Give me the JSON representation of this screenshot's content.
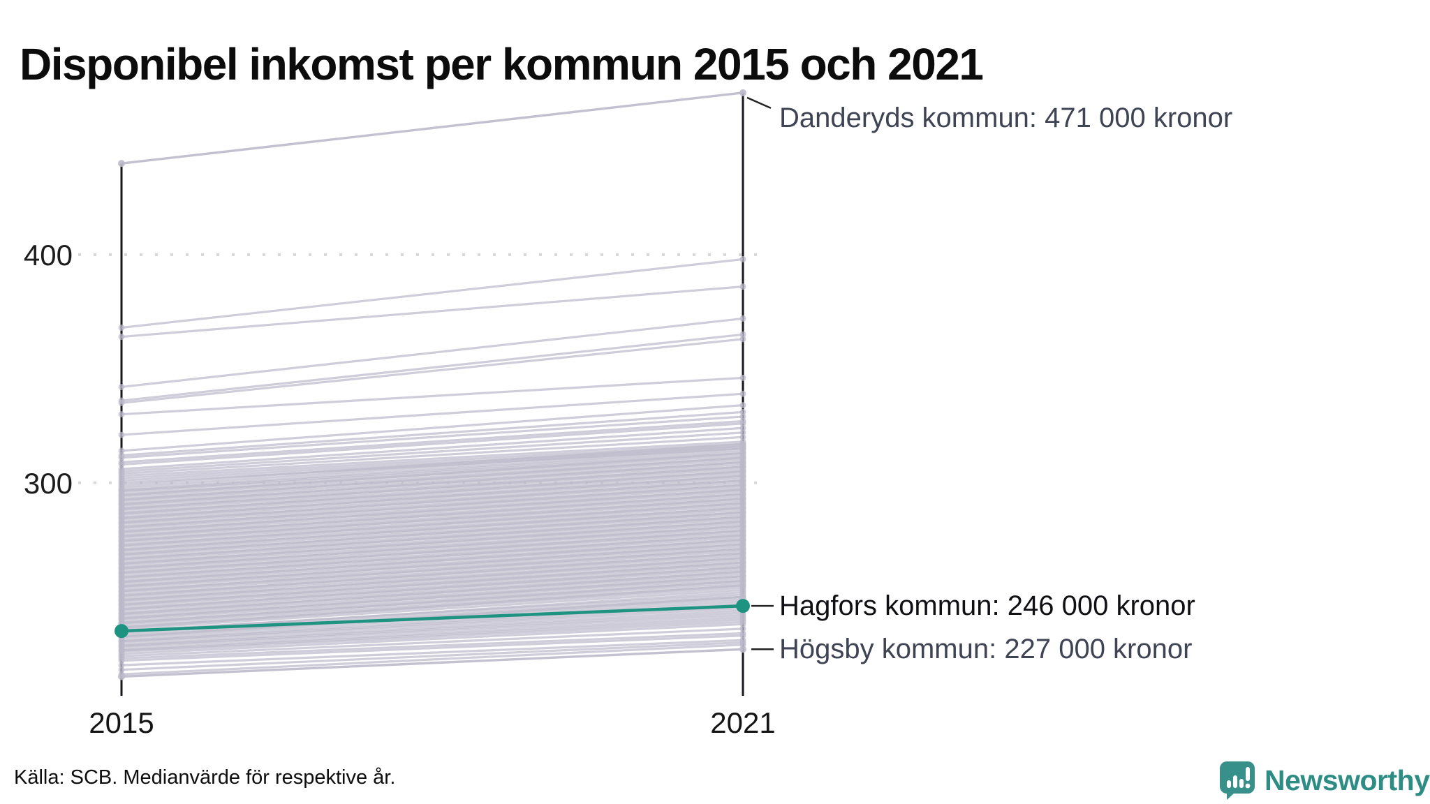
{
  "title": "Disponibel inkomst per kommun 2015 och 2021",
  "footer": {
    "source": "Källa: SCB. Medianvärde för respektive år."
  },
  "branding": {
    "name": "Newsworthy",
    "icon": "newsworthy-speech-bubble-chart-icon",
    "icon_color": "#37918a",
    "text_color": "#2d8d85"
  },
  "chart_data": {
    "type": "line",
    "subtype": "slopegraph",
    "title": "Disponibel inkomst per kommun 2015 och 2021",
    "x": [
      2015,
      2021
    ],
    "x_tick_labels": [
      "2015",
      "2021"
    ],
    "y_ticks": [
      400,
      300
    ],
    "y_tick_labels": [
      "400",
      "300"
    ],
    "ylim": [
      210,
      480
    ],
    "grid": "dotted-horizontal",
    "grid_color": "#d8d8da",
    "line_color": "#bdbacb",
    "highlight_color": "#1f9382",
    "axis_color": "#17171c",
    "annotated": [
      {
        "name": "Danderyds kommun",
        "values": [
          440,
          471
        ],
        "label": "Danderyds kommun: 471 000 kronor",
        "label_color": "#3f4454",
        "style": "background",
        "connector": "diagonal"
      },
      {
        "name": "Hagfors kommun",
        "values": [
          235,
          246
        ],
        "label": "Hagfors kommun: 246 000 kronor",
        "label_color": "#101014",
        "style": "highlight",
        "connector": "horizontal"
      },
      {
        "name": "Högsby kommun",
        "values": [
          215,
          227
        ],
        "label": "Högsby kommun: 227 000 kronor",
        "label_color": "#3f4454",
        "style": "background",
        "connector": "horizontal"
      }
    ],
    "background_series": [
      [
        368,
        398
      ],
      [
        364,
        386
      ],
      [
        342,
        372
      ],
      [
        336,
        365
      ],
      [
        335,
        363
      ],
      [
        330,
        346
      ],
      [
        321,
        339
      ],
      [
        314,
        334
      ],
      [
        312,
        331
      ],
      [
        311,
        329
      ],
      [
        309,
        327
      ],
      [
        308,
        326
      ],
      [
        306,
        324
      ],
      [
        305,
        322
      ],
      [
        304,
        320
      ],
      [
        303,
        318
      ],
      [
        302,
        317
      ],
      [
        301,
        316
      ],
      [
        300,
        315
      ],
      [
        299,
        317
      ],
      [
        298,
        316
      ],
      [
        297,
        315
      ],
      [
        296.5,
        314
      ],
      [
        296,
        313
      ],
      [
        295,
        312
      ],
      [
        294.5,
        313
      ],
      [
        294,
        311
      ],
      [
        293,
        310
      ],
      [
        292.5,
        311
      ],
      [
        292,
        309
      ],
      [
        291,
        308
      ],
      [
        290.5,
        309
      ],
      [
        290,
        307
      ],
      [
        289,
        306
      ],
      [
        288.5,
        307
      ],
      [
        288,
        305
      ],
      [
        287,
        304
      ],
      [
        286.5,
        305
      ],
      [
        286,
        303
      ],
      [
        285,
        302
      ],
      [
        284.5,
        303
      ],
      [
        284,
        301
      ],
      [
        283,
        300
      ],
      [
        282.5,
        301
      ],
      [
        282,
        299
      ],
      [
        281,
        298
      ],
      [
        280.5,
        299
      ],
      [
        280,
        297
      ],
      [
        279,
        296
      ],
      [
        278.5,
        297
      ],
      [
        278,
        295
      ],
      [
        277,
        294
      ],
      [
        276.5,
        295
      ],
      [
        276,
        293
      ],
      [
        275,
        292
      ],
      [
        274.5,
        293
      ],
      [
        274,
        291
      ],
      [
        273,
        290
      ],
      [
        272.5,
        291
      ],
      [
        272,
        289
      ],
      [
        271,
        288
      ],
      [
        270.5,
        289
      ],
      [
        270,
        287
      ],
      [
        269,
        286
      ],
      [
        268.5,
        287
      ],
      [
        268,
        285
      ],
      [
        267,
        284
      ],
      [
        266.5,
        285
      ],
      [
        266,
        283
      ],
      [
        265,
        282
      ],
      [
        264.5,
        283
      ],
      [
        264,
        281
      ],
      [
        263,
        280
      ],
      [
        262.5,
        281
      ],
      [
        262,
        279
      ],
      [
        261,
        278
      ],
      [
        260.5,
        279
      ],
      [
        260,
        277
      ],
      [
        259,
        276
      ],
      [
        258.5,
        277
      ],
      [
        258,
        275
      ],
      [
        257,
        274
      ],
      [
        256.5,
        275
      ],
      [
        256,
        273
      ],
      [
        255,
        272
      ],
      [
        254.5,
        273
      ],
      [
        254,
        271
      ],
      [
        253,
        270
      ],
      [
        252.5,
        271
      ],
      [
        252,
        269
      ],
      [
        251,
        268
      ],
      [
        250.5,
        269
      ],
      [
        250,
        267
      ],
      [
        249,
        266
      ],
      [
        248.5,
        267
      ],
      [
        248,
        265
      ],
      [
        247,
        264
      ],
      [
        246.5,
        265
      ],
      [
        246,
        263
      ],
      [
        245,
        262
      ],
      [
        244.5,
        263
      ],
      [
        244,
        261
      ],
      [
        243,
        260
      ],
      [
        242.5,
        261
      ],
      [
        242,
        259
      ],
      [
        241,
        258
      ],
      [
        240.5,
        259
      ],
      [
        240,
        257
      ],
      [
        239,
        256
      ],
      [
        238.5,
        257
      ],
      [
        238,
        255
      ],
      [
        237,
        254
      ],
      [
        236.5,
        255
      ],
      [
        236,
        253
      ],
      [
        235,
        251
      ],
      [
        234.5,
        252
      ],
      [
        234,
        250
      ],
      [
        233,
        249
      ],
      [
        232.5,
        250
      ],
      [
        232,
        248
      ],
      [
        231,
        247
      ],
      [
        230.5,
        246
      ],
      [
        230,
        245
      ],
      [
        229,
        244
      ],
      [
        228.5,
        243
      ],
      [
        228,
        242
      ],
      [
        227,
        241
      ],
      [
        226.5,
        240
      ],
      [
        226,
        239
      ],
      [
        225,
        238
      ],
      [
        224,
        236
      ],
      [
        223,
        234
      ],
      [
        222,
        233
      ],
      [
        220,
        231
      ],
      [
        218,
        230
      ],
      [
        216,
        229
      ]
    ]
  }
}
